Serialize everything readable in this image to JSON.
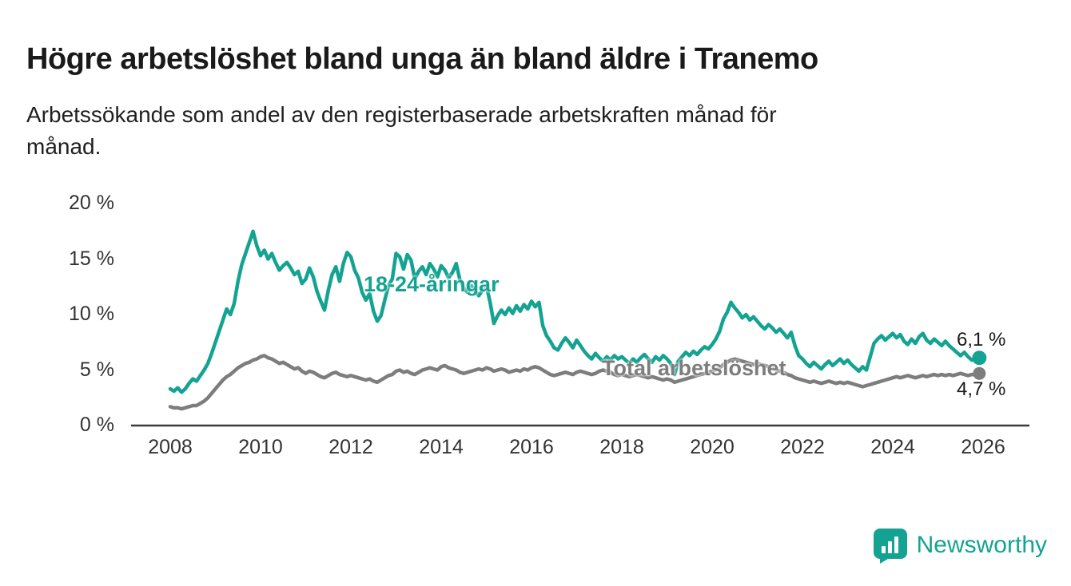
{
  "page": {
    "title": "Högre arbetslöshet bland unga än bland äldre i Tranemo",
    "subtitle_line1": "Arbetssökande som andel av den registerbaserade arbetskraften månad för",
    "subtitle_line2": "månad."
  },
  "colors": {
    "accent_teal": "#14a392",
    "series_gray": "#7d7d7d",
    "axis": "#3a3a3a",
    "text_dark": "#1a1a1a"
  },
  "chart_data": {
    "type": "line",
    "title": "Arbetssökande som andel av den registerbaserade arbetskraften månad för månad",
    "x_start_year": 2008,
    "x_step_months": 1,
    "xlim": [
      2008,
      2026
    ],
    "ylim": [
      0,
      20
    ],
    "grid": false,
    "y_tick_labels": [
      "20 %",
      "15 %",
      "10 %",
      "5 %",
      "0 %"
    ],
    "x_tick_labels": [
      "2008",
      "2010",
      "2012",
      "2014",
      "2016",
      "2018",
      "2020",
      "2022",
      "2024",
      "2026"
    ],
    "series": [
      {
        "id": "total",
        "name": "Total arbetslöshet",
        "color": "#7d7d7d",
        "end_label": "4,7 %",
        "end_value": 4.7,
        "values": [
          1.7,
          1.6,
          1.6,
          1.5,
          1.6,
          1.7,
          1.8,
          1.8,
          2.0,
          2.2,
          2.5,
          2.9,
          3.3,
          3.7,
          4.1,
          4.4,
          4.6,
          4.9,
          5.2,
          5.4,
          5.6,
          5.7,
          5.9,
          6.0,
          6.2,
          6.3,
          6.1,
          6.0,
          5.8,
          5.6,
          5.7,
          5.5,
          5.3,
          5.1,
          5.2,
          4.9,
          4.7,
          4.9,
          4.8,
          4.6,
          4.4,
          4.3,
          4.5,
          4.7,
          4.8,
          4.6,
          4.5,
          4.4,
          4.5,
          4.4,
          4.3,
          4.2,
          4.1,
          4.2,
          4.0,
          3.9,
          4.1,
          4.3,
          4.5,
          4.6,
          4.9,
          5.0,
          4.8,
          4.9,
          4.7,
          4.6,
          4.8,
          5.0,
          5.1,
          5.2,
          5.1,
          5.0,
          5.3,
          5.4,
          5.2,
          5.1,
          5.0,
          4.8,
          4.7,
          4.8,
          4.9,
          5.0,
          5.1,
          5.0,
          5.2,
          5.1,
          4.9,
          5.0,
          5.1,
          5.0,
          4.8,
          4.9,
          5.0,
          4.9,
          5.1,
          5.0,
          5.2,
          5.3,
          5.2,
          5.0,
          4.8,
          4.6,
          4.5,
          4.6,
          4.7,
          4.8,
          4.7,
          4.6,
          4.8,
          4.9,
          4.8,
          4.7,
          4.6,
          4.7,
          4.9,
          5.0,
          4.9,
          4.8,
          4.6,
          4.5,
          4.6,
          4.5,
          4.4,
          4.5,
          4.6,
          4.5,
          4.4,
          4.3,
          4.4,
          4.3,
          4.2,
          4.1,
          4.2,
          4.1,
          3.9,
          4.0,
          4.1,
          4.2,
          4.3,
          4.4,
          4.5,
          4.6,
          4.7,
          4.8,
          4.9,
          5.0,
          5.2,
          5.5,
          5.7,
          5.9,
          6.0,
          5.9,
          5.8,
          5.7,
          5.6,
          5.5,
          5.6,
          5.5,
          5.4,
          5.3,
          5.2,
          5.0,
          4.9,
          4.8,
          4.6,
          4.5,
          4.3,
          4.2,
          4.1,
          4.0,
          3.9,
          4.0,
          3.9,
          3.8,
          3.9,
          4.0,
          3.9,
          3.8,
          3.9,
          3.8,
          3.9,
          3.8,
          3.7,
          3.6,
          3.5,
          3.6,
          3.7,
          3.8,
          3.9,
          4.0,
          4.1,
          4.2,
          4.3,
          4.4,
          4.3,
          4.4,
          4.5,
          4.4,
          4.3,
          4.4,
          4.5,
          4.4,
          4.5,
          4.6,
          4.5,
          4.6,
          4.5,
          4.6,
          4.5,
          4.6,
          4.7,
          4.6,
          4.5,
          4.6,
          4.6,
          4.7
        ]
      },
      {
        "id": "young",
        "name": "18-24-åringar",
        "color": "#14a392",
        "end_label": "6,1 %",
        "end_value": 6.1,
        "values": [
          3.3,
          3.1,
          3.4,
          3.0,
          3.3,
          3.8,
          4.2,
          4.0,
          4.5,
          5.0,
          5.6,
          6.5,
          7.5,
          8.5,
          9.5,
          10.5,
          10.0,
          11.0,
          13.0,
          14.5,
          15.5,
          16.5,
          17.5,
          16.2,
          15.3,
          15.8,
          15.0,
          15.5,
          14.7,
          14.0,
          14.4,
          14.7,
          14.2,
          13.6,
          13.9,
          12.8,
          13.2,
          14.2,
          13.4,
          12.1,
          11.2,
          10.4,
          12.2,
          13.6,
          14.3,
          13.0,
          14.6,
          15.6,
          15.2,
          14.0,
          13.3,
          12.0,
          11.3,
          11.9,
          10.3,
          9.4,
          9.9,
          11.3,
          12.6,
          13.2,
          15.5,
          15.2,
          14.1,
          15.4,
          14.9,
          13.2,
          13.9,
          14.3,
          13.6,
          14.6,
          14.1,
          13.4,
          14.4,
          14.0,
          13.3,
          13.8,
          14.6,
          13.1,
          12.4,
          12.0,
          12.6,
          12.1,
          11.7,
          12.2,
          12.6,
          11.1,
          9.2,
          9.9,
          10.4,
          10.0,
          10.6,
          10.1,
          10.8,
          10.3,
          10.9,
          10.5,
          11.2,
          10.7,
          11.1,
          9.0,
          8.1,
          7.6,
          7.0,
          6.8,
          7.4,
          7.9,
          7.5,
          7.0,
          7.7,
          7.2,
          6.7,
          6.3,
          6.0,
          6.5,
          6.1,
          5.8,
          6.2,
          5.9,
          6.3,
          6.0,
          6.2,
          5.9,
          5.6,
          6.0,
          5.7,
          6.1,
          6.4,
          6.0,
          5.7,
          6.2,
          5.9,
          6.3,
          6.0,
          5.6,
          4.6,
          5.8,
          6.2,
          6.6,
          6.3,
          6.7,
          6.4,
          6.8,
          7.1,
          6.9,
          7.3,
          7.8,
          8.5,
          9.6,
          10.2,
          11.1,
          10.6,
          10.2,
          9.7,
          10.0,
          9.5,
          9.8,
          9.4,
          9.0,
          8.7,
          9.1,
          8.8,
          8.4,
          8.7,
          8.3,
          7.9,
          8.4,
          7.2,
          6.3,
          6.0,
          5.6,
          5.3,
          5.7,
          5.4,
          5.1,
          5.5,
          5.8,
          5.4,
          5.7,
          6.0,
          5.6,
          5.9,
          5.5,
          5.2,
          4.9,
          5.3,
          5.0,
          6.2,
          7.4,
          7.8,
          8.1,
          7.7,
          8.0,
          8.3,
          7.9,
          8.2,
          7.6,
          7.3,
          7.8,
          7.4,
          8.0,
          8.3,
          7.7,
          7.4,
          7.8,
          7.5,
          7.2,
          7.6,
          7.2,
          6.9,
          6.6,
          6.3,
          6.6,
          6.2,
          5.9,
          6.0,
          6.1
        ]
      }
    ]
  },
  "logo": {
    "text": "Newsworthy",
    "icon": "bar-chart-bubble-icon"
  }
}
